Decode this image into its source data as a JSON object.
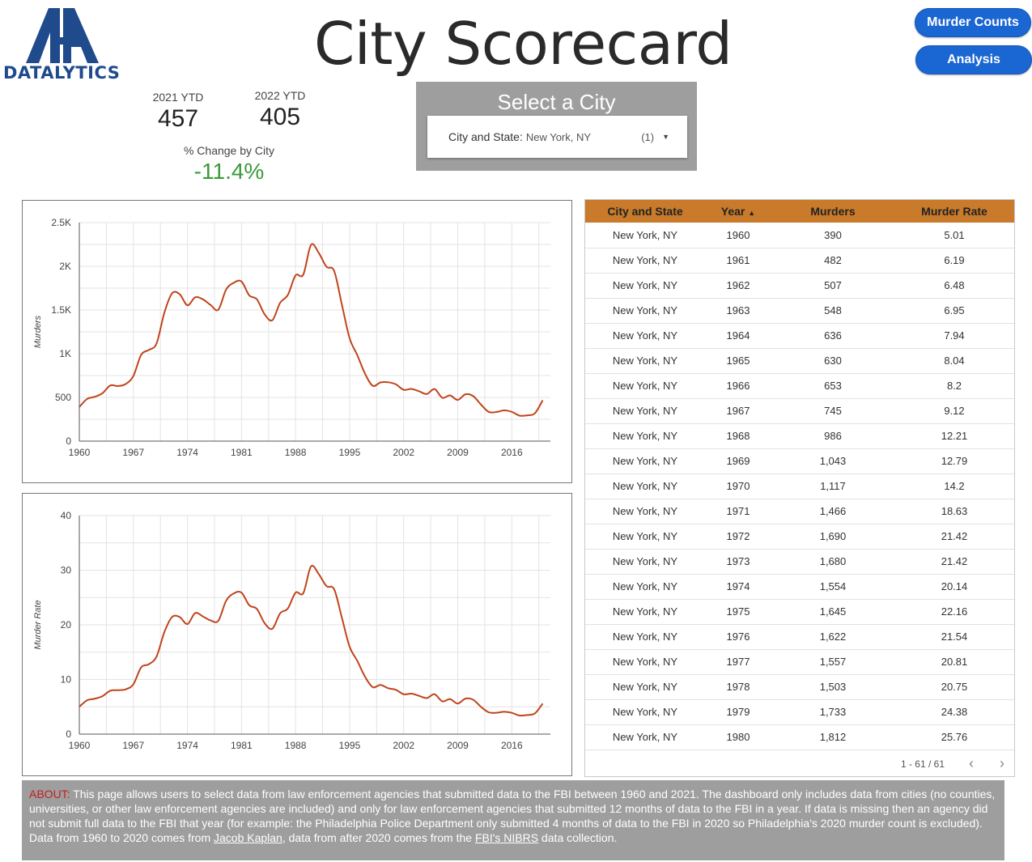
{
  "logo": {
    "text": "DATALYTICS"
  },
  "header": {
    "title": "City Scorecard"
  },
  "nav": {
    "murder_counts": "Murder Counts",
    "analysis": "Analysis"
  },
  "kpis": {
    "ytd_2021_label": "2021 YTD",
    "ytd_2021_value": "457",
    "ytd_2022_label": "2022 YTD",
    "ytd_2022_value": "405",
    "pct_label": "% Change by City",
    "pct_value": "-11.4%"
  },
  "city_filter": {
    "panel_title": "Select a City",
    "label": "City and State:",
    "value": "New York, NY",
    "count": "(1)"
  },
  "colors": {
    "line": "#c0441c",
    "header": "#c97b2b",
    "accent": "#1a66d2",
    "positive_change": "#3a9a3a"
  },
  "chart_data": [
    {
      "type": "line",
      "ylabel": "Murders",
      "xlabel": "",
      "x_ticks": [
        "1960",
        "1967",
        "1974",
        "1981",
        "1988",
        "1995",
        "2002",
        "2009",
        "2016"
      ],
      "y_ticks": [
        "0",
        "500",
        "1K",
        "1.5K",
        "2K",
        "2.5K"
      ],
      "xlim": [
        1960,
        2021
      ],
      "ylim": [
        0,
        2500
      ],
      "series": [
        {
          "values": [
            [
              1960,
              390
            ],
            [
              1961,
              482
            ],
            [
              1962,
              507
            ],
            [
              1963,
              548
            ],
            [
              1964,
              636
            ],
            [
              1965,
              630
            ],
            [
              1966,
              653
            ],
            [
              1967,
              745
            ],
            [
              1968,
              986
            ],
            [
              1969,
              1043
            ],
            [
              1970,
              1117
            ],
            [
              1971,
              1466
            ],
            [
              1972,
              1690
            ],
            [
              1973,
              1680
            ],
            [
              1974,
              1554
            ],
            [
              1975,
              1645
            ],
            [
              1976,
              1622
            ],
            [
              1977,
              1557
            ],
            [
              1978,
              1503
            ],
            [
              1979,
              1733
            ],
            [
              1980,
              1812
            ],
            [
              1981,
              1826
            ],
            [
              1982,
              1668
            ],
            [
              1983,
              1622
            ],
            [
              1984,
              1450
            ],
            [
              1985,
              1384
            ],
            [
              1986,
              1582
            ],
            [
              1987,
              1672
            ],
            [
              1988,
              1896
            ],
            [
              1989,
              1905
            ],
            [
              1990,
              2245
            ],
            [
              1991,
              2154
            ],
            [
              1992,
              1995
            ],
            [
              1993,
              1946
            ],
            [
              1994,
              1561
            ],
            [
              1995,
              1177
            ],
            [
              1996,
              983
            ],
            [
              1997,
              770
            ],
            [
              1998,
              633
            ],
            [
              1999,
              671
            ],
            [
              2000,
              673
            ],
            [
              2001,
              649
            ],
            [
              2002,
              587
            ],
            [
              2003,
              597
            ],
            [
              2004,
              570
            ],
            [
              2005,
              539
            ],
            [
              2006,
              596
            ],
            [
              2007,
              496
            ],
            [
              2008,
              523
            ],
            [
              2009,
              471
            ],
            [
              2010,
              536
            ],
            [
              2011,
              515
            ],
            [
              2012,
              419
            ],
            [
              2013,
              335
            ],
            [
              2014,
              333
            ],
            [
              2015,
              352
            ],
            [
              2016,
              335
            ],
            [
              2017,
              292
            ],
            [
              2018,
              295
            ],
            [
              2019,
              319
            ],
            [
              2020,
              468
            ]
          ]
        }
      ]
    },
    {
      "type": "line",
      "ylabel": "Murder Rate",
      "xlabel": "",
      "x_ticks": [
        "1960",
        "1967",
        "1974",
        "1981",
        "1988",
        "1995",
        "2002",
        "2009",
        "2016"
      ],
      "y_ticks": [
        "0",
        "10",
        "20",
        "30",
        "40"
      ],
      "xlim": [
        1960,
        2021
      ],
      "ylim": [
        0,
        40
      ],
      "series": [
        {
          "values": [
            [
              1960,
              5.01
            ],
            [
              1961,
              6.19
            ],
            [
              1962,
              6.48
            ],
            [
              1963,
              6.95
            ],
            [
              1964,
              7.94
            ],
            [
              1965,
              8.04
            ],
            [
              1966,
              8.2
            ],
            [
              1967,
              9.12
            ],
            [
              1968,
              12.21
            ],
            [
              1969,
              12.79
            ],
            [
              1970,
              14.2
            ],
            [
              1971,
              18.63
            ],
            [
              1972,
              21.42
            ],
            [
              1973,
              21.42
            ],
            [
              1974,
              20.14
            ],
            [
              1975,
              22.16
            ],
            [
              1976,
              21.54
            ],
            [
              1977,
              20.81
            ],
            [
              1978,
              20.75
            ],
            [
              1979,
              24.38
            ],
            [
              1980,
              25.76
            ],
            [
              1981,
              25.9
            ],
            [
              1982,
              23.6
            ],
            [
              1983,
              22.9
            ],
            [
              1984,
              20.3
            ],
            [
              1985,
              19.3
            ],
            [
              1986,
              22.1
            ],
            [
              1987,
              23.0
            ],
            [
              1988,
              25.9
            ],
            [
              1989,
              25.8
            ],
            [
              1990,
              30.7
            ],
            [
              1991,
              29.3
            ],
            [
              1992,
              27.1
            ],
            [
              1993,
              26.5
            ],
            [
              1994,
              21.3
            ],
            [
              1995,
              16.0
            ],
            [
              1996,
              13.4
            ],
            [
              1997,
              10.5
            ],
            [
              1998,
              8.6
            ],
            [
              1999,
              9.0
            ],
            [
              2000,
              8.4
            ],
            [
              2001,
              8.1
            ],
            [
              2002,
              7.3
            ],
            [
              2003,
              7.4
            ],
            [
              2004,
              7.0
            ],
            [
              2005,
              6.6
            ],
            [
              2006,
              7.3
            ],
            [
              2007,
              6.0
            ],
            [
              2008,
              6.4
            ],
            [
              2009,
              5.6
            ],
            [
              2010,
              6.5
            ],
            [
              2011,
              6.3
            ],
            [
              2012,
              5.0
            ],
            [
              2013,
              4.0
            ],
            [
              2014,
              3.9
            ],
            [
              2015,
              4.1
            ],
            [
              2016,
              3.9
            ],
            [
              2017,
              3.4
            ],
            [
              2018,
              3.5
            ],
            [
              2019,
              3.8
            ],
            [
              2020,
              5.6
            ]
          ]
        }
      ]
    }
  ],
  "table": {
    "columns": [
      "City and State",
      "Year",
      "Murders",
      "Murder Rate"
    ],
    "sort_indicator": "▲",
    "rows": [
      [
        "New York, NY",
        "1960",
        "390",
        "5.01"
      ],
      [
        "New York, NY",
        "1961",
        "482",
        "6.19"
      ],
      [
        "New York, NY",
        "1962",
        "507",
        "6.48"
      ],
      [
        "New York, NY",
        "1963",
        "548",
        "6.95"
      ],
      [
        "New York, NY",
        "1964",
        "636",
        "7.94"
      ],
      [
        "New York, NY",
        "1965",
        "630",
        "8.04"
      ],
      [
        "New York, NY",
        "1966",
        "653",
        "8.2"
      ],
      [
        "New York, NY",
        "1967",
        "745",
        "9.12"
      ],
      [
        "New York, NY",
        "1968",
        "986",
        "12.21"
      ],
      [
        "New York, NY",
        "1969",
        "1,043",
        "12.79"
      ],
      [
        "New York, NY",
        "1970",
        "1,117",
        "14.2"
      ],
      [
        "New York, NY",
        "1971",
        "1,466",
        "18.63"
      ],
      [
        "New York, NY",
        "1972",
        "1,690",
        "21.42"
      ],
      [
        "New York, NY",
        "1973",
        "1,680",
        "21.42"
      ],
      [
        "New York, NY",
        "1974",
        "1,554",
        "20.14"
      ],
      [
        "New York, NY",
        "1975",
        "1,645",
        "22.16"
      ],
      [
        "New York, NY",
        "1976",
        "1,622",
        "21.54"
      ],
      [
        "New York, NY",
        "1977",
        "1,557",
        "20.81"
      ],
      [
        "New York, NY",
        "1978",
        "1,503",
        "20.75"
      ],
      [
        "New York, NY",
        "1979",
        "1,733",
        "24.38"
      ],
      [
        "New York, NY",
        "1980",
        "1,812",
        "25.76"
      ]
    ],
    "pagination": "1 - 61 / 61",
    "prev": "‹",
    "next": "›"
  },
  "about": {
    "label": "ABOUT:",
    "text1": " This page allows users to select data from law enforcement agencies that submitted data to the FBI between 1960 and 2021. The dashboard only includes data from cities (no counties, universities, or other law enforcement agencies are included) and only for law enforcement agencies that submitted 12 months of data to the FBI in a year. If data is missing then an agency did not submit full data to the FBI that year (for example: the Philadelphia Police Department only submitted 4 months of data to the FBI in 2020 so Philadelphia's 2020 murder count is excluded). Data from 1960 to 2020 comes from ",
    "link1": "Jacob Kaplan",
    "text2": ", data from after 2020 comes from the ",
    "link2": "FBI's NIBRS",
    "text3": " data collection."
  }
}
